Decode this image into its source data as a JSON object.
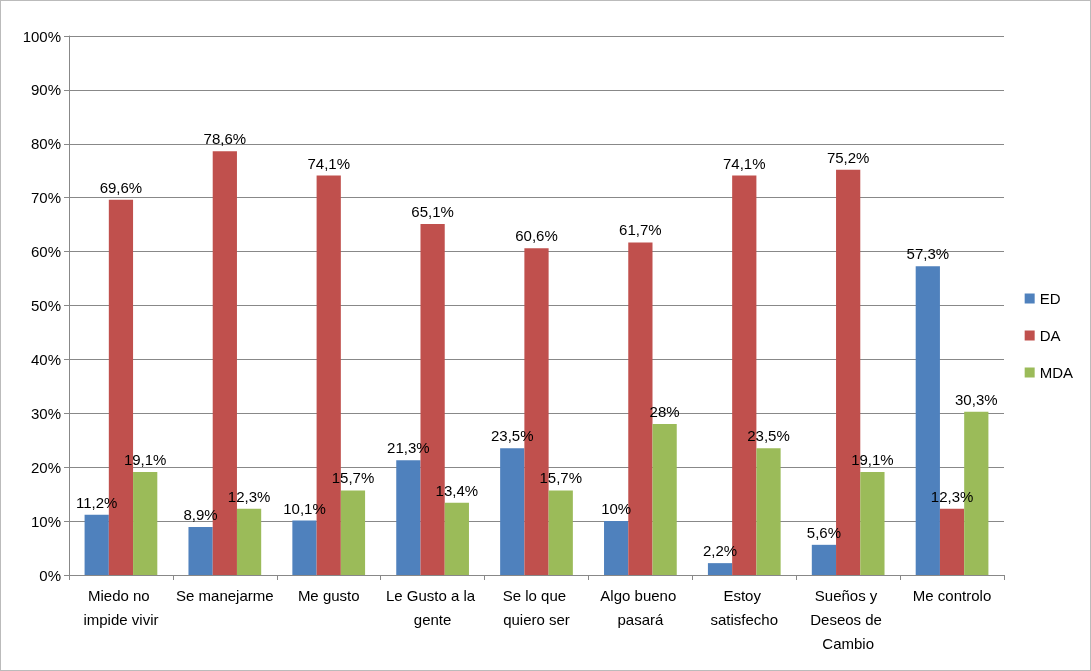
{
  "chart_data": {
    "type": "bar",
    "categories": [
      "Miedo no impide vivir",
      "Se manejarme",
      "Me gusto",
      "Le Gusto a la gente",
      "Se lo que quiero ser",
      "Algo bueno pasará",
      "Estoy satisfecho",
      "Sueños y Deseos de Cambio",
      "Me controlo"
    ],
    "series": [
      {
        "name": "ED",
        "color": "#4f81bd",
        "values": [
          11.2,
          8.9,
          10.1,
          21.3,
          23.5,
          10,
          2.2,
          5.6,
          57.3
        ],
        "value_labels": [
          "11,2%",
          "8,9%",
          "10,1%",
          "21,3%",
          "23,5%",
          "10%",
          "2,2%",
          "5,6%",
          "57,3%"
        ]
      },
      {
        "name": "DA",
        "color": "#c0504d",
        "values": [
          69.6,
          78.6,
          74.1,
          65.1,
          60.6,
          61.7,
          74.1,
          75.2,
          12.3
        ],
        "value_labels": [
          "69,6%",
          "78,6%",
          "74,1%",
          "65,1%",
          "60,6%",
          "61,7%",
          "74,1%",
          "75,2%",
          "12,3%"
        ]
      },
      {
        "name": "MDA",
        "color": "#9bbb59",
        "values": [
          19.1,
          12.3,
          15.7,
          13.4,
          15.7,
          28,
          23.5,
          19.1,
          30.3
        ],
        "value_labels": [
          "19,1%",
          "12,3%",
          "15,7%",
          "13,4%",
          "15,7%",
          "28%",
          "23,5%",
          "19,1%",
          "30,3%"
        ]
      }
    ],
    "ylim": [
      0,
      100
    ],
    "yticks": [
      {
        "value": 0,
        "label": "0%"
      },
      {
        "value": 10,
        "label": "10%"
      },
      {
        "value": 20,
        "label": "20%"
      },
      {
        "value": 30,
        "label": "30%"
      },
      {
        "value": 40,
        "label": "40%"
      },
      {
        "value": 50,
        "label": "50%"
      },
      {
        "value": 60,
        "label": "60%"
      },
      {
        "value": 70,
        "label": "70%"
      },
      {
        "value": 80,
        "label": "80%"
      },
      {
        "value": 90,
        "label": "90%"
      },
      {
        "value": 100,
        "label": "100%"
      }
    ],
    "grid": "y",
    "legend": "right"
  }
}
